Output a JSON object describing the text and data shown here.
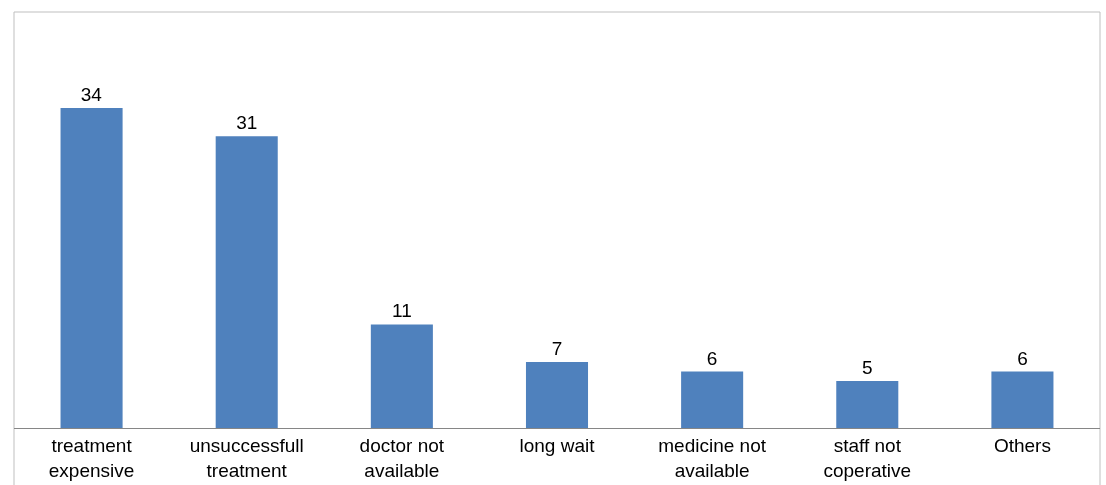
{
  "chart_data": {
    "type": "bar",
    "categories": [
      "treatment expensive",
      "unsuccessfull treatment",
      "doctor not available",
      "long wait",
      "medicine not available",
      "staff not coperative",
      "Others"
    ],
    "values": [
      34,
      31,
      11,
      7,
      6,
      5,
      6
    ],
    "color": "#4f81bd",
    "data_labels": true,
    "grid": false,
    "legend": false
  }
}
